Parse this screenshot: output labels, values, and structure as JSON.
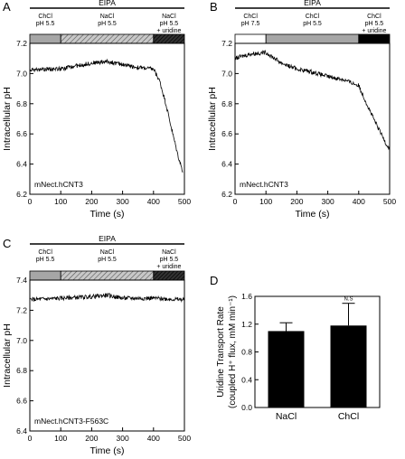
{
  "chart_data": [
    {
      "panel": "A",
      "type": "line",
      "xlabel": "Time (s)",
      "ylabel": "Intracellular pH",
      "xlim": [
        0,
        500
      ],
      "ylim": [
        6.2,
        7.2
      ],
      "xticks": [
        0,
        100,
        200,
        300,
        400,
        500
      ],
      "yticks": [
        6.2,
        6.4,
        6.6,
        6.8,
        7.0,
        7.2
      ],
      "annotation": "mNect.hCNT3",
      "treatment": "EIPA",
      "conditions": [
        {
          "label": [
            "ChCl",
            "pH 5.5"
          ],
          "start": 0,
          "end": 100,
          "fill": "gray"
        },
        {
          "label": [
            "NaCl",
            "pH 5.5"
          ],
          "start": 100,
          "end": 400,
          "fill": "hatch"
        },
        {
          "label": [
            "NaCl",
            "pH 5.5",
            "+ uridine"
          ],
          "start": 400,
          "end": 500,
          "fill": "dark-hatch"
        }
      ],
      "series": [
        {
          "x": [
            0,
            50,
            100,
            150,
            200,
            250,
            300,
            350,
            400,
            420,
            440,
            460,
            480,
            495
          ],
          "y": [
            7.02,
            7.03,
            7.03,
            7.05,
            7.07,
            7.08,
            7.06,
            7.04,
            7.03,
            6.95,
            6.8,
            6.62,
            6.45,
            6.35
          ]
        }
      ]
    },
    {
      "panel": "B",
      "type": "line",
      "xlabel": "Time (s)",
      "ylabel": "Intracellular pH",
      "xlim": [
        0,
        500
      ],
      "ylim": [
        6.2,
        7.2
      ],
      "xticks": [
        0,
        100,
        200,
        300,
        400,
        500
      ],
      "yticks": [
        6.2,
        6.4,
        6.6,
        6.8,
        7.0,
        7.2
      ],
      "annotation": "mNect.hCNT3",
      "treatment": "EIPA",
      "conditions": [
        {
          "label": [
            "ChCl",
            "pH 7.5"
          ],
          "start": 0,
          "end": 100,
          "fill": "white"
        },
        {
          "label": [
            "ChCl",
            "pH 5.5"
          ],
          "start": 100,
          "end": 400,
          "fill": "gray"
        },
        {
          "label": [
            "ChCl",
            "pH 5.5",
            "+ uridine"
          ],
          "start": 400,
          "end": 500,
          "fill": "black"
        }
      ],
      "series": [
        {
          "x": [
            0,
            50,
            100,
            150,
            200,
            250,
            300,
            350,
            400,
            430,
            460,
            490,
            500
          ],
          "y": [
            7.1,
            7.13,
            7.14,
            7.07,
            7.03,
            7.01,
            6.98,
            6.96,
            6.92,
            6.78,
            6.65,
            6.53,
            6.5
          ]
        }
      ]
    },
    {
      "panel": "C",
      "type": "line",
      "xlabel": "Time (s)",
      "ylabel": "Intracellular pH",
      "xlim": [
        0,
        500
      ],
      "ylim": [
        6.4,
        7.4
      ],
      "xticks": [
        0,
        100,
        200,
        300,
        400,
        500
      ],
      "yticks": [
        6.4,
        6.6,
        6.8,
        7.0,
        7.2,
        7.4
      ],
      "annotation": "mNect.hCNT3-F563C",
      "treatment": "EIPA",
      "conditions": [
        {
          "label": [
            "ChCl",
            "pH 5.5"
          ],
          "start": 0,
          "end": 100,
          "fill": "gray"
        },
        {
          "label": [
            "NaCl",
            "pH 5.5"
          ],
          "start": 100,
          "end": 400,
          "fill": "hatch"
        },
        {
          "label": [
            "NaCl",
            "pH 5.5",
            "+ uridine"
          ],
          "start": 400,
          "end": 500,
          "fill": "dark-hatch"
        }
      ],
      "series": [
        {
          "x": [
            0,
            100,
            200,
            250,
            300,
            400,
            500
          ],
          "y": [
            7.27,
            7.28,
            7.29,
            7.3,
            7.28,
            7.28,
            7.27
          ]
        }
      ]
    },
    {
      "panel": "D",
      "type": "bar",
      "ylabel_lines": [
        "Uridine Transport Rate",
        "(coupled H⁺ flux, mM min⁻¹)"
      ],
      "ylim": [
        0,
        1.6
      ],
      "yticks": [
        0,
        0.4,
        0.8,
        1.2,
        1.6
      ],
      "categories": [
        "NaCl",
        "ChCl"
      ],
      "values": [
        1.1,
        1.18
      ],
      "errors": [
        0.12,
        0.32
      ],
      "significance": {
        "ChCl": "N.S"
      }
    }
  ]
}
